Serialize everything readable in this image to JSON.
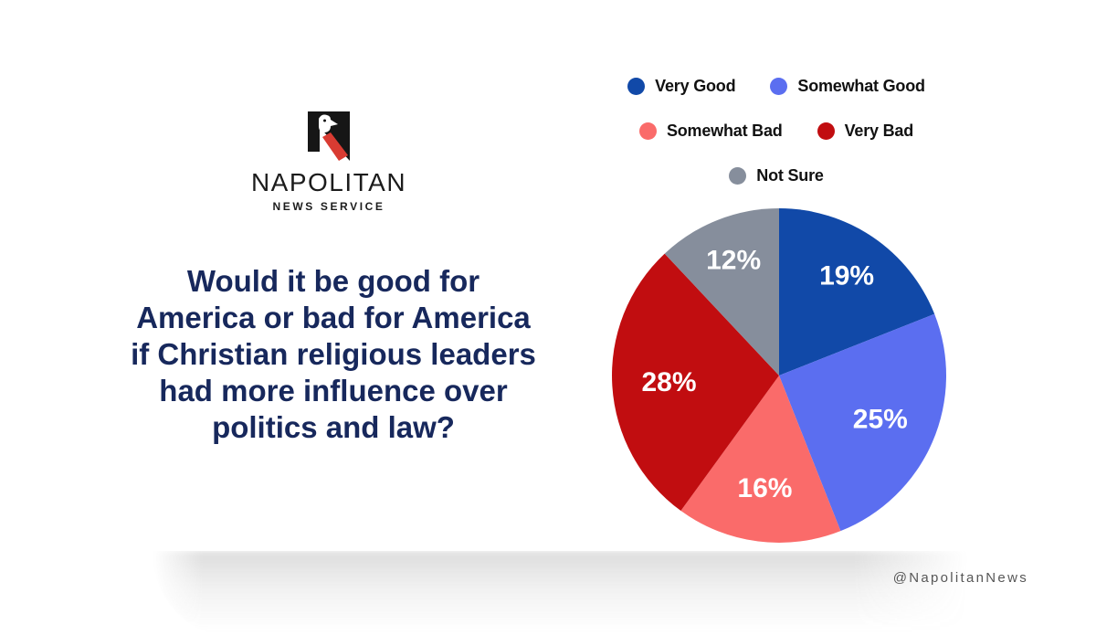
{
  "brand": {
    "logo_name": "NAPOLITAN",
    "logo_subtitle": "NEWS SERVICE",
    "handle": "@NapolitanNews",
    "logo_black": "#161616",
    "logo_red": "#d93b32"
  },
  "question": {
    "lines": [
      "Would it be good for",
      "America or bad for America",
      "if Christian religious leaders",
      "had more influence over",
      "politics and law?"
    ],
    "color": "#17285c"
  },
  "chart_data": {
    "type": "pie",
    "title": "",
    "categories": [
      "Very Good",
      "Somewhat Good",
      "Somewhat Bad",
      "Very Bad",
      "Not Sure"
    ],
    "values": [
      19,
      25,
      16,
      28,
      12
    ],
    "labels": [
      "19%",
      "25%",
      "16%",
      "28%",
      "12%"
    ],
    "colors": [
      "#1149a8",
      "#5b6ef0",
      "#fa6b6a",
      "#c10d10",
      "#868e9c"
    ],
    "label_color": "#ffffff",
    "start_angle_deg": 0,
    "direction": "clockwise",
    "legend_position": "top",
    "legend_rows": [
      [
        "Very Good",
        "Somewhat Good"
      ],
      [
        "Somewhat Bad",
        "Very Bad"
      ],
      [
        "Not Sure"
      ]
    ]
  }
}
